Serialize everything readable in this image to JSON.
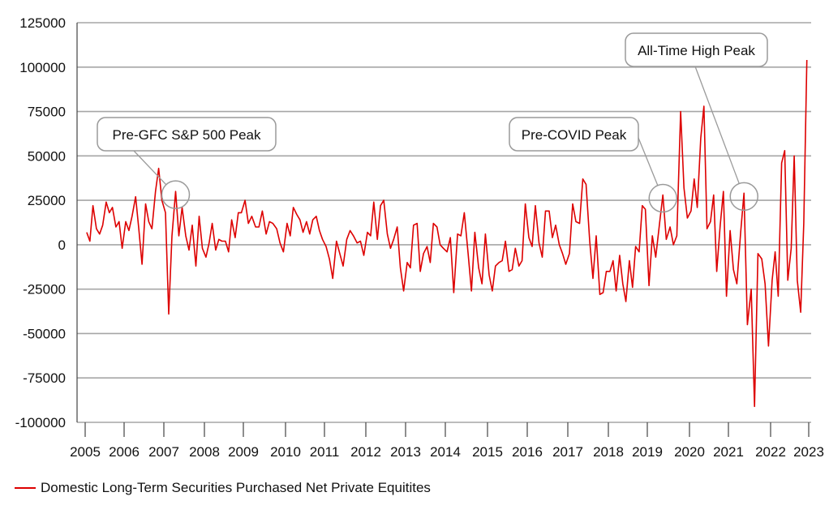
{
  "chart_data": {
    "type": "line",
    "ylim": [
      -100000,
      125000
    ],
    "yticks": [
      125000,
      100000,
      75000,
      50000,
      25000,
      0,
      -25000,
      -50000,
      -75000,
      -100000
    ],
    "ytick_labels": [
      "125000",
      "100000",
      "75000",
      "50000",
      "25000",
      "0",
      "-25000",
      "-50000",
      "-75000",
      "-100000"
    ],
    "xlim": [
      2005.0,
      2023.28
    ],
    "xticks": [
      2005,
      2006,
      2007,
      2008,
      2009,
      2010,
      2011,
      2012,
      2013,
      2014,
      2015,
      2016,
      2017,
      2018,
      2019,
      2020,
      2021,
      2022,
      2023
    ],
    "xtick_labels": [
      "2005",
      "2006",
      "2007",
      "2008",
      "2009",
      "2010",
      "2011",
      "2012",
      "2013",
      "2014",
      "2015",
      "2016",
      "2017",
      "2018",
      "2019",
      "2020",
      "2021",
      "2022",
      "2023"
    ],
    "grid": true,
    "legend_position": "bottom-left",
    "series": [
      {
        "name": "Domestic Long-Term Securities Purchased Net Private Equitites",
        "color": "#dd0000",
        "points": [
          [
            2005.04,
            7000
          ],
          [
            2005.12,
            2000
          ],
          [
            2005.2,
            22000
          ],
          [
            2005.29,
            9000
          ],
          [
            2005.37,
            6000
          ],
          [
            2005.45,
            11000
          ],
          [
            2005.54,
            24000
          ],
          [
            2005.62,
            18000
          ],
          [
            2005.7,
            21000
          ],
          [
            2005.79,
            10000
          ],
          [
            2005.87,
            13000
          ],
          [
            2005.95,
            -2000
          ],
          [
            2006.04,
            13000
          ],
          [
            2006.12,
            8000
          ],
          [
            2006.2,
            16000
          ],
          [
            2006.29,
            27000
          ],
          [
            2006.37,
            9000
          ],
          [
            2006.45,
            -11000
          ],
          [
            2006.54,
            23000
          ],
          [
            2006.62,
            13000
          ],
          [
            2006.7,
            9000
          ],
          [
            2006.79,
            30000
          ],
          [
            2006.87,
            43000
          ],
          [
            2006.95,
            25000
          ],
          [
            2007.04,
            18000
          ],
          [
            2007.12,
            -39000
          ],
          [
            2007.2,
            5000
          ],
          [
            2007.29,
            30000
          ],
          [
            2007.37,
            5000
          ],
          [
            2007.45,
            21000
          ],
          [
            2007.54,
            5000
          ],
          [
            2007.62,
            -3000
          ],
          [
            2007.7,
            11000
          ],
          [
            2007.79,
            -12000
          ],
          [
            2007.87,
            16000
          ],
          [
            2007.95,
            -2000
          ],
          [
            2008.04,
            -7000
          ],
          [
            2008.12,
            1000
          ],
          [
            2008.2,
            12000
          ],
          [
            2008.29,
            -3000
          ],
          [
            2008.37,
            3000
          ],
          [
            2008.45,
            2000
          ],
          [
            2008.54,
            2000
          ],
          [
            2008.62,
            -4000
          ],
          [
            2008.7,
            14000
          ],
          [
            2008.79,
            4000
          ],
          [
            2008.87,
            18000
          ],
          [
            2008.95,
            18000
          ],
          [
            2009.04,
            25000
          ],
          [
            2009.12,
            12000
          ],
          [
            2009.2,
            16000
          ],
          [
            2009.29,
            10000
          ],
          [
            2009.37,
            10000
          ],
          [
            2009.45,
            19000
          ],
          [
            2009.54,
            6000
          ],
          [
            2009.62,
            13000
          ],
          [
            2009.7,
            12000
          ],
          [
            2009.79,
            9000
          ],
          [
            2009.87,
            1000
          ],
          [
            2009.95,
            -4000
          ],
          [
            2010.04,
            12000
          ],
          [
            2010.12,
            5000
          ],
          [
            2010.2,
            21000
          ],
          [
            2010.29,
            17000
          ],
          [
            2010.37,
            14000
          ],
          [
            2010.45,
            7000
          ],
          [
            2010.54,
            13000
          ],
          [
            2010.62,
            6000
          ],
          [
            2010.7,
            14000
          ],
          [
            2010.79,
            16000
          ],
          [
            2010.87,
            8000
          ],
          [
            2010.95,
            3000
          ],
          [
            2011.04,
            -1000
          ],
          [
            2011.12,
            -8000
          ],
          [
            2011.2,
            -19000
          ],
          [
            2011.29,
            2000
          ],
          [
            2011.37,
            -5000
          ],
          [
            2011.45,
            -12000
          ],
          [
            2011.54,
            3000
          ],
          [
            2011.62,
            8000
          ],
          [
            2011.7,
            5000
          ],
          [
            2011.79,
            1000
          ],
          [
            2011.87,
            2000
          ],
          [
            2011.95,
            -6000
          ],
          [
            2012.04,
            7000
          ],
          [
            2012.12,
            5000
          ],
          [
            2012.2,
            24000
          ],
          [
            2012.29,
            3000
          ],
          [
            2012.37,
            22000
          ],
          [
            2012.45,
            25000
          ],
          [
            2012.54,
            6000
          ],
          [
            2012.62,
            -2000
          ],
          [
            2012.7,
            3000
          ],
          [
            2012.79,
            10000
          ],
          [
            2012.87,
            -13000
          ],
          [
            2012.95,
            -26000
          ],
          [
            2013.04,
            -10000
          ],
          [
            2013.12,
            -13000
          ],
          [
            2013.2,
            11000
          ],
          [
            2013.29,
            12000
          ],
          [
            2013.37,
            -15000
          ],
          [
            2013.45,
            -5000
          ],
          [
            2013.54,
            -1000
          ],
          [
            2013.62,
            -10000
          ],
          [
            2013.7,
            12000
          ],
          [
            2013.79,
            10000
          ],
          [
            2013.87,
            0
          ],
          [
            2013.95,
            -2000
          ],
          [
            2014.04,
            -4000
          ],
          [
            2014.12,
            4000
          ],
          [
            2014.2,
            -27000
          ],
          [
            2014.29,
            6000
          ],
          [
            2014.37,
            5000
          ],
          [
            2014.45,
            18000
          ],
          [
            2014.54,
            -5000
          ],
          [
            2014.62,
            -26000
          ],
          [
            2014.7,
            7000
          ],
          [
            2014.79,
            -13000
          ],
          [
            2014.87,
            -22000
          ],
          [
            2014.95,
            6000
          ],
          [
            2015.04,
            -17000
          ],
          [
            2015.12,
            -26000
          ],
          [
            2015.2,
            -12000
          ],
          [
            2015.29,
            -10000
          ],
          [
            2015.37,
            -9000
          ],
          [
            2015.45,
            2000
          ],
          [
            2015.54,
            -15000
          ],
          [
            2015.62,
            -14000
          ],
          [
            2015.7,
            -2000
          ],
          [
            2015.79,
            -12000
          ],
          [
            2015.87,
            -9000
          ],
          [
            2015.95,
            23000
          ],
          [
            2016.04,
            4000
          ],
          [
            2016.12,
            -1000
          ],
          [
            2016.2,
            22000
          ],
          [
            2016.29,
            1000
          ],
          [
            2016.37,
            -7000
          ],
          [
            2016.45,
            19000
          ],
          [
            2016.54,
            19000
          ],
          [
            2016.62,
            4000
          ],
          [
            2016.7,
            11000
          ],
          [
            2016.79,
            0
          ],
          [
            2016.87,
            -5000
          ],
          [
            2016.95,
            -11000
          ],
          [
            2017.04,
            -5000
          ],
          [
            2017.12,
            23000
          ],
          [
            2017.2,
            13000
          ],
          [
            2017.29,
            12000
          ],
          [
            2017.37,
            37000
          ],
          [
            2017.45,
            34000
          ],
          [
            2017.54,
            2000
          ],
          [
            2017.62,
            -19000
          ],
          [
            2017.7,
            5000
          ],
          [
            2017.79,
            -28000
          ],
          [
            2017.87,
            -27000
          ],
          [
            2017.95,
            -15000
          ],
          [
            2018.04,
            -15000
          ],
          [
            2018.12,
            -9000
          ],
          [
            2018.2,
            -26000
          ],
          [
            2018.29,
            -6000
          ],
          [
            2018.37,
            -22000
          ],
          [
            2018.45,
            -32000
          ],
          [
            2018.54,
            -9000
          ],
          [
            2018.62,
            -24000
          ],
          [
            2018.7,
            -1000
          ],
          [
            2018.79,
            -4000
          ],
          [
            2018.87,
            22000
          ],
          [
            2018.95,
            20000
          ],
          [
            2019.04,
            -23000
          ],
          [
            2019.12,
            5000
          ],
          [
            2019.2,
            -7000
          ],
          [
            2019.29,
            12000
          ],
          [
            2019.37,
            28000
          ],
          [
            2019.45,
            3000
          ],
          [
            2019.54,
            10000
          ],
          [
            2019.62,
            0
          ],
          [
            2019.7,
            5000
          ],
          [
            2019.79,
            75000
          ],
          [
            2019.87,
            32000
          ],
          [
            2019.95,
            15000
          ],
          [
            2020.04,
            19000
          ],
          [
            2020.12,
            37000
          ],
          [
            2020.2,
            21000
          ],
          [
            2020.29,
            60000
          ],
          [
            2020.37,
            78000
          ],
          [
            2020.45,
            9000
          ],
          [
            2020.54,
            13000
          ],
          [
            2020.62,
            28000
          ],
          [
            2020.7,
            -15000
          ],
          [
            2020.79,
            11000
          ],
          [
            2020.87,
            30000
          ],
          [
            2020.95,
            -29000
          ],
          [
            2021.04,
            8000
          ],
          [
            2021.12,
            -14000
          ],
          [
            2021.2,
            -22000
          ],
          [
            2021.29,
            7000
          ],
          [
            2021.37,
            29000
          ],
          [
            2021.45,
            -45000
          ],
          [
            2021.54,
            -25000
          ],
          [
            2021.62,
            -91000
          ],
          [
            2021.7,
            -5000
          ],
          [
            2021.79,
            -8000
          ],
          [
            2021.87,
            -22000
          ],
          [
            2021.95,
            -57000
          ],
          [
            2022.04,
            -20000
          ],
          [
            2022.12,
            -4000
          ],
          [
            2022.2,
            -29000
          ],
          [
            2022.29,
            46000
          ],
          [
            2022.37,
            53000
          ],
          [
            2022.45,
            -20000
          ],
          [
            2022.54,
            -2000
          ],
          [
            2022.62,
            50000
          ],
          [
            2022.7,
            -20000
          ],
          [
            2022.79,
            -38000
          ],
          [
            2022.87,
            12000
          ],
          [
            2022.95,
            104000
          ]
        ]
      }
    ],
    "annotations": [
      {
        "text": "Pre-GFC S&P 500 Peak",
        "x": 2007.29,
        "y": 30000
      },
      {
        "text": "Pre-COVID Peak",
        "x": 2019.37,
        "y": 28000
      },
      {
        "text": "All-Time High Peak",
        "x": 2021.37,
        "y": 29000
      }
    ]
  }
}
